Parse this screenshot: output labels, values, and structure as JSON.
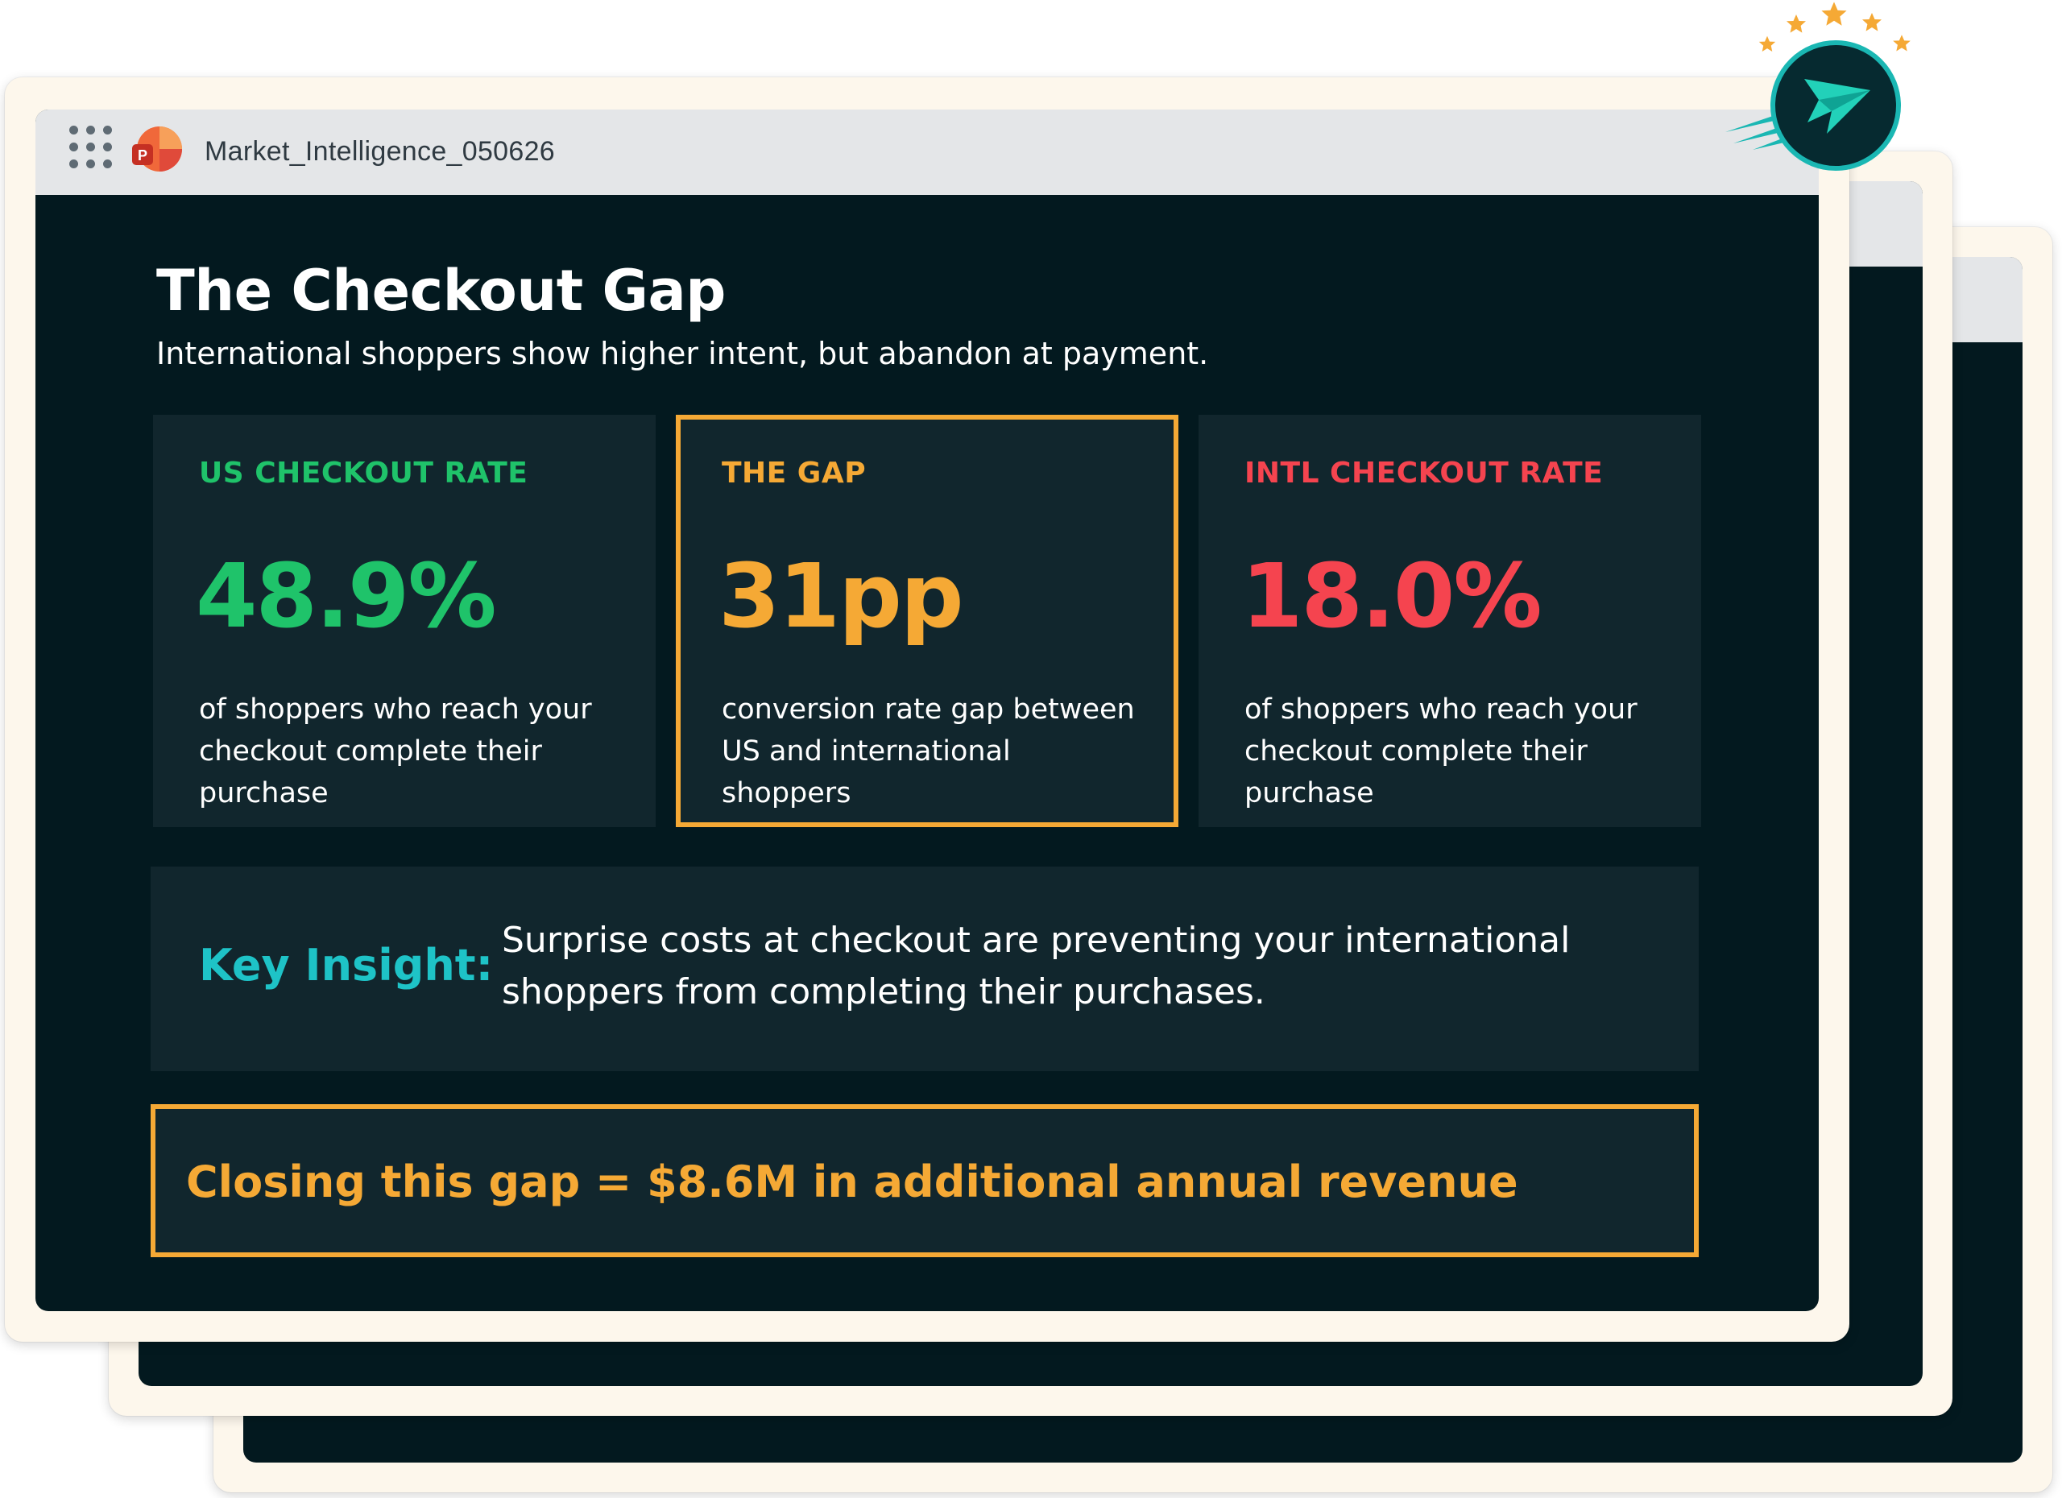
{
  "window": {
    "title": "Market_Intelligence_050626"
  },
  "slide": {
    "title": "The Checkout Gap",
    "subtitle": "International shoppers show higher intent, but abandon at payment."
  },
  "cards": [
    {
      "label": "US CHECKOUT RATE",
      "value": "48.9%",
      "description": "of shoppers who reach your checkout complete their purchase",
      "color": "#1fc36a"
    },
    {
      "label": "THE GAP",
      "value": "31pp",
      "description": "conversion rate gap between US and international shoppers",
      "color": "#f5a935"
    },
    {
      "label": "INTL CHECKOUT RATE",
      "value": "18.0%",
      "description": "of shoppers who reach your checkout complete their purchase",
      "color": "#f5444f"
    }
  ],
  "insight": {
    "label": "Key Insight:",
    "text": "Surprise costs at checkout are preventing your international shoppers from completing their purchases."
  },
  "revenue": {
    "text": "Closing this gap = $8.6M in additional annual revenue"
  },
  "colors": {
    "slide_background": "#03191f",
    "card_background": "#11262d",
    "accent_green": "#1fc36a",
    "accent_orange": "#f5a935",
    "accent_red": "#f5444f",
    "accent_teal": "#1ec3c7",
    "star": "#f5a935"
  },
  "icons": {
    "apps": "apps-grid-icon",
    "powerpoint": "powerpoint-icon",
    "logo": "paper-plane-icon",
    "stars": "star-icon"
  }
}
